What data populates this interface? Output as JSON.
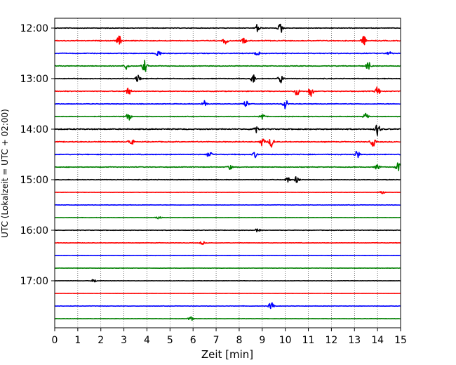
{
  "chart_data": {
    "type": "line",
    "title": "",
    "xlabel": "Zeit  [min]",
    "ylabel": "UTC (Lokalzeit = UTC + 02:00)",
    "xlim": [
      0,
      15
    ],
    "x_ticks": [
      0,
      1,
      2,
      3,
      4,
      5,
      6,
      7,
      8,
      9,
      10,
      11,
      12,
      13,
      14,
      15
    ],
    "y_tick_labels": [
      "12:00",
      "13:00",
      "14:00",
      "15:00",
      "16:00",
      "17:00"
    ],
    "grid": "vertical dotted",
    "trace_interval_min": 15,
    "trace_colors": [
      "#000000",
      "#ff0000",
      "#0000ff",
      "#008000"
    ],
    "traces": [
      {
        "start": "12:00",
        "color": "#000000",
        "noise": 0.35,
        "events": [
          {
            "t": 8.8,
            "amp": 1.5
          },
          {
            "t": 9.8,
            "amp": 1.8
          }
        ]
      },
      {
        "start": "12:15",
        "color": "#ff0000",
        "noise": 0.5,
        "events": [
          {
            "t": 2.8,
            "amp": 1.6
          },
          {
            "t": 7.4,
            "amp": 1.2
          },
          {
            "t": 8.2,
            "amp": 1.0
          },
          {
            "t": 13.4,
            "amp": 1.6
          }
        ]
      },
      {
        "start": "12:30",
        "color": "#0000ff",
        "noise": 0.45,
        "events": [
          {
            "t": 4.5,
            "amp": 1.2
          },
          {
            "t": 8.8,
            "amp": 1.3
          },
          {
            "t": 14.5,
            "amp": 0.8
          }
        ]
      },
      {
        "start": "12:45",
        "color": "#008000",
        "noise": 0.4,
        "events": [
          {
            "t": 3.1,
            "amp": 1.2
          },
          {
            "t": 3.9,
            "amp": 2.2
          },
          {
            "t": 13.6,
            "amp": 1.4
          }
        ]
      },
      {
        "start": "13:00",
        "color": "#000000",
        "noise": 0.4,
        "events": [
          {
            "t": 3.6,
            "amp": 1.2
          },
          {
            "t": 8.6,
            "amp": 1.6
          },
          {
            "t": 9.8,
            "amp": 1.7
          }
        ]
      },
      {
        "start": "13:15",
        "color": "#ff0000",
        "noise": 0.45,
        "events": [
          {
            "t": 3.2,
            "amp": 1.4
          },
          {
            "t": 10.5,
            "amp": 1.5
          },
          {
            "t": 11.1,
            "amp": 2.0
          },
          {
            "t": 14.0,
            "amp": 1.6
          }
        ]
      },
      {
        "start": "13:30",
        "color": "#0000ff",
        "noise": 0.35,
        "events": [
          {
            "t": 6.5,
            "amp": 1.2
          },
          {
            "t": 8.3,
            "amp": 1.2
          },
          {
            "t": 10.0,
            "amp": 2.0
          }
        ]
      },
      {
        "start": "13:45",
        "color": "#008000",
        "noise": 0.35,
        "events": [
          {
            "t": 3.2,
            "amp": 1.4
          },
          {
            "t": 9.0,
            "amp": 1.3
          },
          {
            "t": 13.5,
            "amp": 1.5
          }
        ]
      },
      {
        "start": "14:00",
        "color": "#000000",
        "noise": 0.6,
        "events": [
          {
            "t": 8.7,
            "amp": 1.6
          },
          {
            "t": 14.0,
            "amp": 2.2
          }
        ]
      },
      {
        "start": "14:15",
        "color": "#ff0000",
        "noise": 0.5,
        "events": [
          {
            "t": 3.3,
            "amp": 1.5
          },
          {
            "t": 9.0,
            "amp": 1.4
          },
          {
            "t": 9.4,
            "amp": 1.8
          },
          {
            "t": 13.8,
            "amp": 1.6
          }
        ]
      },
      {
        "start": "14:30",
        "color": "#0000ff",
        "noise": 0.45,
        "events": [
          {
            "t": 6.7,
            "amp": 1.2
          },
          {
            "t": 8.7,
            "amp": 1.0
          },
          {
            "t": 13.1,
            "amp": 1.6
          }
        ]
      },
      {
        "start": "14:45",
        "color": "#008000",
        "noise": 0.4,
        "events": [
          {
            "t": 7.6,
            "amp": 0.8
          },
          {
            "t": 14.0,
            "amp": 1.0
          },
          {
            "t": 14.9,
            "amp": 1.6
          }
        ]
      },
      {
        "start": "15:00",
        "color": "#000000",
        "noise": 0.35,
        "events": [
          {
            "t": 10.1,
            "amp": 1.0
          },
          {
            "t": 10.5,
            "amp": 1.3
          }
        ]
      },
      {
        "start": "15:15",
        "color": "#ff0000",
        "noise": 0.2,
        "events": [
          {
            "t": 14.2,
            "amp": 0.6
          }
        ]
      },
      {
        "start": "15:30",
        "color": "#0000ff",
        "noise": 0.25,
        "events": []
      },
      {
        "start": "15:45",
        "color": "#008000",
        "noise": 0.2,
        "events": [
          {
            "t": 4.5,
            "amp": 0.6
          }
        ]
      },
      {
        "start": "16:00",
        "color": "#000000",
        "noise": 0.3,
        "events": [
          {
            "t": 8.8,
            "amp": 0.6
          }
        ]
      },
      {
        "start": "16:15",
        "color": "#ff0000",
        "noise": 0.25,
        "events": [
          {
            "t": 6.4,
            "amp": 0.6
          }
        ]
      },
      {
        "start": "16:30",
        "color": "#0000ff",
        "noise": 0.2,
        "events": []
      },
      {
        "start": "16:45",
        "color": "#008000",
        "noise": 0.2,
        "events": []
      },
      {
        "start": "17:00",
        "color": "#000000",
        "noise": 0.2,
        "events": [
          {
            "t": 1.7,
            "amp": 0.6
          }
        ]
      },
      {
        "start": "17:15",
        "color": "#ff0000",
        "noise": 0.15,
        "events": []
      },
      {
        "start": "17:30",
        "color": "#0000ff",
        "noise": 0.25,
        "events": [
          {
            "t": 9.4,
            "amp": 1.6
          }
        ]
      },
      {
        "start": "17:45",
        "color": "#008000",
        "noise": 0.2,
        "events": [
          {
            "t": 5.9,
            "amp": 0.8
          }
        ]
      }
    ]
  }
}
